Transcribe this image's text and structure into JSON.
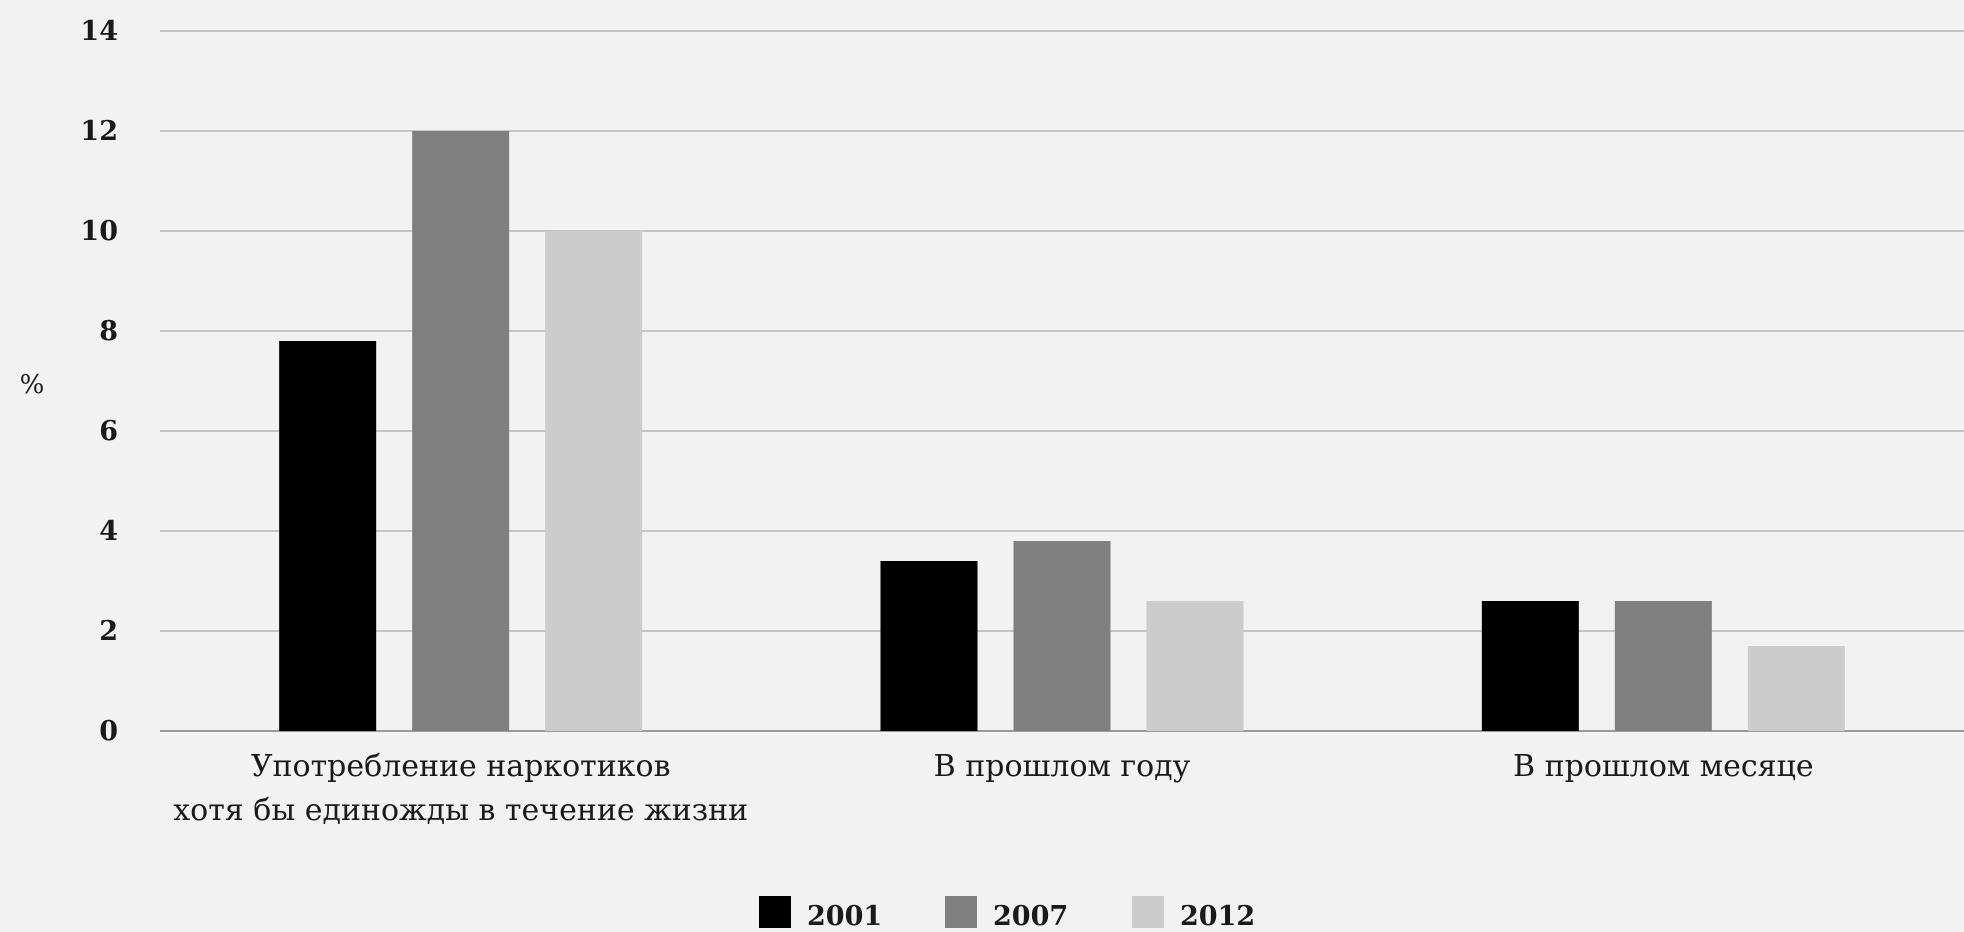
{
  "chart_data": {
    "type": "bar",
    "title": "",
    "xlabel": "",
    "ylabel": "%",
    "ylim": [
      0,
      14
    ],
    "yticks": [
      0,
      2,
      4,
      6,
      8,
      10,
      12,
      14
    ],
    "grid": true,
    "legend_position": "bottom",
    "categories": [
      [
        "Употребление наркотиков",
        "хотя бы единожды в течение жизни"
      ],
      [
        "В прошлом году"
      ],
      [
        "В прошлом месяце"
      ]
    ],
    "series": [
      {
        "name": "2001",
        "color": "#000000",
        "values": [
          7.8,
          3.4,
          2.6
        ]
      },
      {
        "name": "2007",
        "color": "#808080",
        "values": [
          12.0,
          3.8,
          2.6
        ]
      },
      {
        "name": "2012",
        "color": "#cccccc",
        "values": [
          10.0,
          2.6,
          1.7
        ]
      }
    ]
  }
}
